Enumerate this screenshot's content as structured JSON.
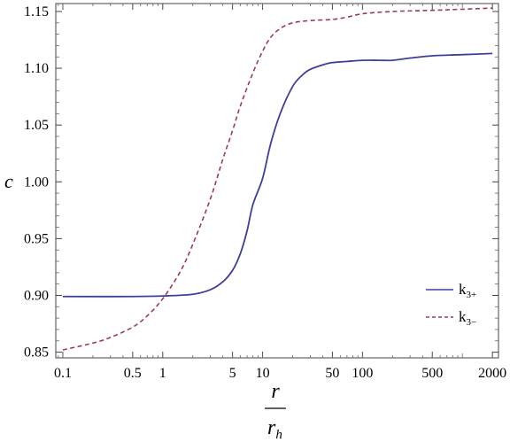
{
  "chart_data": {
    "type": "line",
    "title": "",
    "xscale": "log",
    "xlim": [
      0.085,
      2300
    ],
    "ylim": [
      0.845,
      1.157
    ],
    "xlabel": {
      "numerator": "r",
      "denominator": "r",
      "denominator_sub": "h"
    },
    "ylabel": "c",
    "x_ticks": [
      {
        "value": 0.1,
        "label": "0.1"
      },
      {
        "value": 0.5,
        "label": "0.5"
      },
      {
        "value": 1,
        "label": "1"
      },
      {
        "value": 5,
        "label": "5"
      },
      {
        "value": 10,
        "label": "10"
      },
      {
        "value": 50,
        "label": "50"
      },
      {
        "value": 100,
        "label": "100"
      },
      {
        "value": 500,
        "label": "500"
      },
      {
        "value": 2000,
        "label": "2000"
      }
    ],
    "y_ticks": [
      {
        "value": 0.85,
        "label": "0.85"
      },
      {
        "value": 0.9,
        "label": "0.90"
      },
      {
        "value": 0.95,
        "label": "0.95"
      },
      {
        "value": 1.0,
        "label": "1.00"
      },
      {
        "value": 1.05,
        "label": "1.05"
      },
      {
        "value": 1.1,
        "label": "1.10"
      },
      {
        "value": 1.15,
        "label": "1.15"
      }
    ],
    "grid": false,
    "legend_position": "right-lower",
    "series": [
      {
        "name": "k3+",
        "name_base": "k",
        "name_sub": "3+",
        "style": "solid",
        "color": "#3f3f9a",
        "points": [
          [
            0.1,
            0.899
          ],
          [
            0.5,
            0.899
          ],
          [
            1,
            0.8995
          ],
          [
            2,
            0.901
          ],
          [
            3,
            0.905
          ],
          [
            4,
            0.912
          ],
          [
            5,
            0.922
          ],
          [
            6,
            0.937
          ],
          [
            7,
            0.957
          ],
          [
            8,
            0.98
          ],
          [
            10,
            1.003
          ],
          [
            12,
            1.033
          ],
          [
            15,
            1.06
          ],
          [
            20,
            1.084
          ],
          [
            25,
            1.094
          ],
          [
            30,
            1.099
          ],
          [
            40,
            1.103
          ],
          [
            50,
            1.105
          ],
          [
            70,
            1.106
          ],
          [
            100,
            1.107
          ],
          [
            150,
            1.107
          ],
          [
            200,
            1.107
          ],
          [
            300,
            1.109
          ],
          [
            500,
            1.111
          ],
          [
            1000,
            1.112
          ],
          [
            2000,
            1.113
          ]
        ]
      },
      {
        "name": "k3−",
        "name_base": "k",
        "name_sub": "3−",
        "style": "dashed",
        "color": "#9b3a5c",
        "points": [
          [
            0.1,
            0.852
          ],
          [
            0.2,
            0.858
          ],
          [
            0.3,
            0.863
          ],
          [
            0.5,
            0.872
          ],
          [
            0.7,
            0.882
          ],
          [
            1,
            0.897
          ],
          [
            1.5,
            0.921
          ],
          [
            2,
            0.945
          ],
          [
            3,
            0.985
          ],
          [
            4,
            1.02
          ],
          [
            5,
            1.045
          ],
          [
            6,
            1.067
          ],
          [
            8,
            1.096
          ],
          [
            10,
            1.115
          ],
          [
            12,
            1.127
          ],
          [
            15,
            1.135
          ],
          [
            20,
            1.14
          ],
          [
            30,
            1.142
          ],
          [
            50,
            1.143
          ],
          [
            70,
            1.145
          ],
          [
            100,
            1.148
          ],
          [
            200,
            1.15
          ],
          [
            500,
            1.151
          ],
          [
            1000,
            1.152
          ],
          [
            2000,
            1.153
          ]
        ]
      }
    ]
  }
}
